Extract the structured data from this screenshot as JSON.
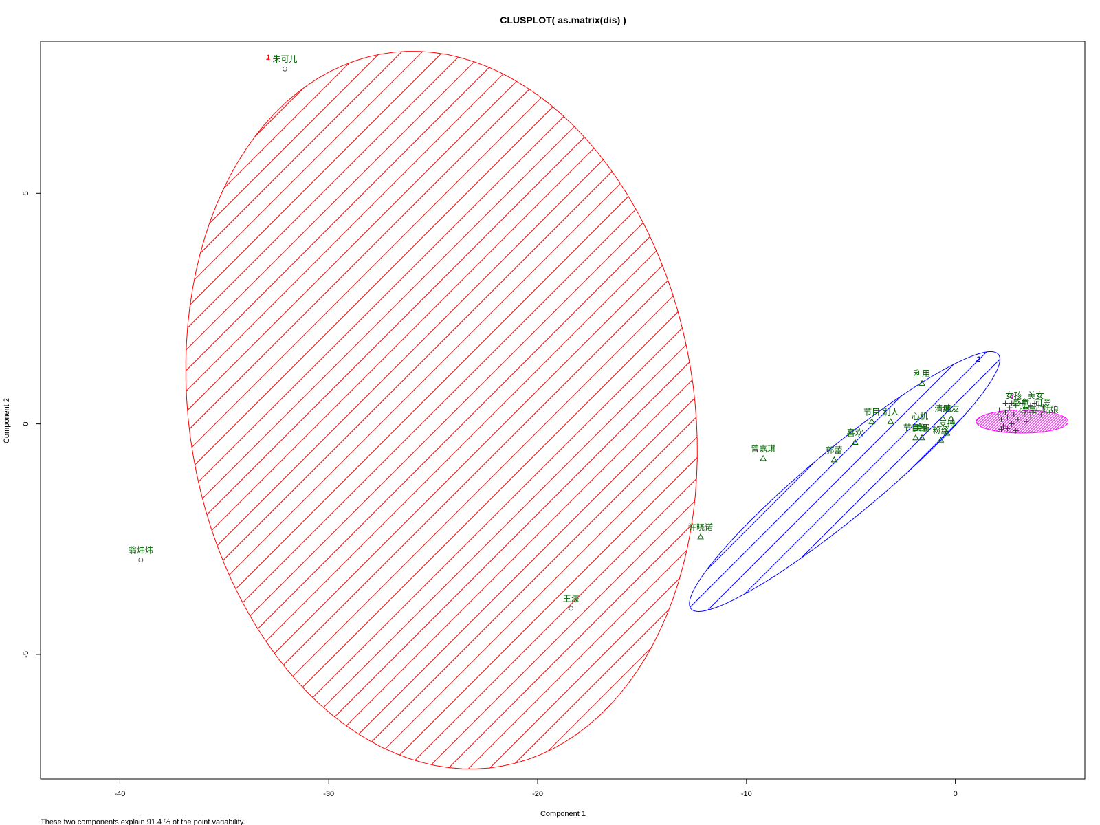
{
  "chart_data": {
    "type": "scatter",
    "title": "CLUSPLOT( as.matrix(dis) )",
    "xlabel": "Component 1",
    "ylabel": "Component 2",
    "footnote": "These two components explain 91.4 % of the point variability.",
    "xlim": [
      -43.8,
      6.2
    ],
    "ylim": [
      -7.7,
      8.3
    ],
    "x_ticks": [
      -40,
      -30,
      -20,
      -10,
      0
    ],
    "y_ticks": [
      -5,
      0,
      5
    ],
    "x_tick_labels": [
      "-40",
      "-30",
      "-20",
      "-10",
      "0"
    ],
    "y_tick_labels": [
      "-5",
      "0",
      "5"
    ],
    "grid": false,
    "colors": {
      "cluster1": "#ff0000",
      "cluster2": "#0000ff",
      "cluster3": "#ff00ff",
      "points": "#006400",
      "plus": "#333333"
    },
    "clusters": [
      {
        "label": "1",
        "color": "#ff0000",
        "label_x": -32.9,
        "label_y": 7.9,
        "ellipse": {
          "cx": -24.6,
          "cy": 0.3,
          "angle_deg": 83.2,
          "a": 7.7,
          "b": 12.3
        }
      },
      {
        "label": "2",
        "color": "#0000ff",
        "label_x": 1.1,
        "label_y": 1.35,
        "ellipse": {
          "cx": -5.3,
          "cy": -1.25,
          "angle_deg": 19.9,
          "a": 7.9,
          "b": 0.9
        }
      },
      {
        "label": "3",
        "color": "#ff00ff",
        "label_x": 2.7,
        "label_y": 0.55,
        "ellipse": {
          "cx": 3.2,
          "cy": 0.05,
          "angle_deg": 0,
          "a": 2.2,
          "b": 0.25
        }
      }
    ],
    "labeled_points": [
      {
        "name": "朱可儿",
        "x": -32.1,
        "y": 7.7,
        "marker": "circle"
      },
      {
        "name": "翁炜炜",
        "x": -39.0,
        "y": -2.95,
        "marker": "circle"
      },
      {
        "name": "王濛",
        "x": -18.4,
        "y": -4.0,
        "marker": "circle"
      },
      {
        "name": "利用",
        "x": -1.6,
        "y": 0.88,
        "marker": "triangle"
      },
      {
        "name": "曾嘉琪",
        "x": -9.2,
        "y": -0.75,
        "marker": "triangle"
      },
      {
        "name": "许晓诺",
        "x": -12.2,
        "y": -2.45,
        "marker": "triangle"
      },
      {
        "name": "郭蕾",
        "x": -5.8,
        "y": -0.78,
        "marker": "triangle"
      },
      {
        "name": "喜欢",
        "x": -4.8,
        "y": -0.4,
        "marker": "triangle"
      },
      {
        "name": "节目",
        "x": -4.0,
        "y": 0.05,
        "marker": "triangle"
      },
      {
        "name": "别人",
        "x": -3.1,
        "y": 0.05,
        "marker": "triangle"
      },
      {
        "name": "心机",
        "x": -1.7,
        "y": -0.05,
        "marker": "triangle"
      },
      {
        "name": "节目组",
        "x": -1.9,
        "y": -0.3,
        "marker": "triangle"
      },
      {
        "name": "美眉",
        "x": -1.6,
        "y": -0.3,
        "marker": "triangle"
      },
      {
        "name": "粉丝",
        "x": -0.7,
        "y": -0.35,
        "marker": "triangle"
      },
      {
        "name": "支持",
        "x": -0.4,
        "y": -0.2,
        "marker": "triangle"
      },
      {
        "name": "清纯",
        "x": -0.6,
        "y": 0.12,
        "marker": "triangle"
      },
      {
        "name": "朋友",
        "x": -0.2,
        "y": 0.12,
        "marker": "triangle"
      }
    ],
    "cluster3_points": [
      [
        2.1,
        0.3
      ],
      [
        2.2,
        0.1
      ],
      [
        2.3,
        -0.05
      ],
      [
        2.4,
        0.25
      ],
      [
        2.5,
        0.15
      ],
      [
        2.6,
        0.35
      ],
      [
        2.7,
        0.0
      ],
      [
        2.8,
        0.2
      ],
      [
        2.9,
        0.4
      ],
      [
        3.0,
        0.1
      ],
      [
        3.1,
        0.3
      ],
      [
        3.2,
        0.45
      ],
      [
        3.3,
        0.2
      ],
      [
        3.4,
        0.05
      ],
      [
        3.5,
        0.35
      ],
      [
        3.6,
        0.4
      ],
      [
        3.7,
        0.25
      ],
      [
        3.8,
        0.45
      ],
      [
        3.9,
        0.3
      ],
      [
        4.0,
        0.4
      ],
      [
        4.1,
        0.2
      ],
      [
        2.2,
        -0.12
      ],
      [
        2.5,
        -0.1
      ],
      [
        2.9,
        -0.15
      ],
      [
        3.3,
        0.5
      ],
      [
        3.6,
        0.15
      ],
      [
        2.4,
        0.45
      ],
      [
        2.05,
        0.2
      ],
      [
        2.7,
        0.45
      ],
      [
        4.2,
        0.38
      ]
    ],
    "cluster3_labels": [
      "女孩",
      "感觉",
      "漂亮",
      "美女",
      "可爱",
      "姑娘"
    ]
  }
}
